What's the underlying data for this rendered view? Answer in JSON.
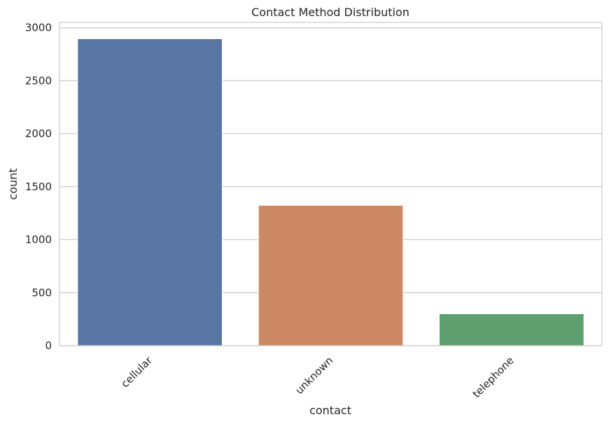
{
  "chart_data": {
    "type": "bar",
    "title": "Contact Method Distribution",
    "xlabel": "contact",
    "ylabel": "count",
    "categories": [
      "cellular",
      "unknown",
      "telephone"
    ],
    "values": [
      2896,
      1324,
      301
    ],
    "colors": [
      "#5875a4",
      "#cc8963",
      "#5f9e6e"
    ],
    "ylim": [
      0,
      3050
    ],
    "yticks": [
      0,
      500,
      1000,
      1500,
      2000,
      2500,
      3000
    ],
    "grid": true,
    "legend": "none"
  }
}
